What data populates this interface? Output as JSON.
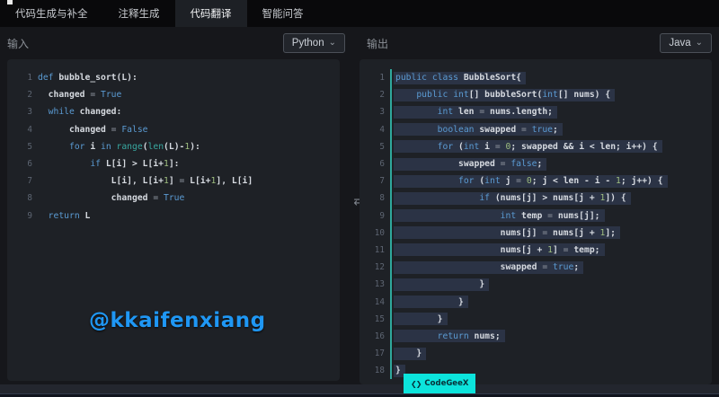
{
  "tabs": [
    {
      "id": "codegen",
      "label": "代码生成与补全",
      "active": false
    },
    {
      "id": "comment",
      "label": "注释生成",
      "active": false
    },
    {
      "id": "translate",
      "label": "代码翻译",
      "active": true
    },
    {
      "id": "qa",
      "label": "智能问答",
      "active": false
    }
  ],
  "panels": {
    "input": {
      "label": "输入",
      "lang": "Python"
    },
    "output": {
      "label": "输出",
      "lang": "Java"
    }
  },
  "icons": {
    "chevron_down": "⌄",
    "swap_arrows": "⇄",
    "badge_logo": "❮❯"
  },
  "watermark": "@kkaifenxiang",
  "badge": {
    "label": "CodeGeeX"
  },
  "colors": {
    "page_bg": "#16171b",
    "topbar_bg": "#09090b",
    "active_tab_bg": "#1d2025",
    "editor_bg": "#1e2126",
    "selection_bg": "#2b3345",
    "accent_teal": "#2fa89d",
    "keyword_blue": "#5b9bd3",
    "builtin_teal": "#38a8a0",
    "number_green": "#9fbf80",
    "watermark_blue": "#1f97f4",
    "badge_cyan": "#0ce4dc"
  },
  "editors": {
    "input": {
      "language": "Python",
      "lines": [
        [
          [
            "kw",
            "def"
          ],
          [
            "w",
            " bubble_sort(L):"
          ]
        ],
        [
          [
            "w",
            "  changed "
          ],
          [
            "op",
            "="
          ],
          [
            "w",
            " "
          ],
          [
            "kw",
            "True"
          ]
        ],
        [
          [
            "w",
            "  "
          ],
          [
            "kw",
            "while"
          ],
          [
            "w",
            " changed:"
          ]
        ],
        [
          [
            "w",
            "      changed "
          ],
          [
            "op",
            "="
          ],
          [
            "w",
            " "
          ],
          [
            "kw",
            "False"
          ]
        ],
        [
          [
            "w",
            "      "
          ],
          [
            "kw",
            "for"
          ],
          [
            "w",
            " i "
          ],
          [
            "kw",
            "in"
          ],
          [
            "w",
            " "
          ],
          [
            "fn",
            "range"
          ],
          [
            "w",
            "("
          ],
          [
            "fn",
            "len"
          ],
          [
            "w",
            "(L)-"
          ],
          [
            "num",
            "1"
          ],
          [
            "w",
            "):"
          ]
        ],
        [
          [
            "w",
            "          "
          ],
          [
            "kw",
            "if"
          ],
          [
            "w",
            " L[i] > L[i+"
          ],
          [
            "num",
            "1"
          ],
          [
            "w",
            "]:"
          ]
        ],
        [
          [
            "w",
            "              L[i], L[i+"
          ],
          [
            "num",
            "1"
          ],
          [
            "w",
            "] "
          ],
          [
            "op",
            "="
          ],
          [
            "w",
            " L[i+"
          ],
          [
            "num",
            "1"
          ],
          [
            "w",
            "], L[i]"
          ]
        ],
        [
          [
            "w",
            "              changed "
          ],
          [
            "op",
            "="
          ],
          [
            "w",
            " "
          ],
          [
            "kw",
            "True"
          ]
        ],
        [
          [
            "w",
            "  "
          ],
          [
            "kw",
            "return"
          ],
          [
            "w",
            " L"
          ]
        ]
      ]
    },
    "output": {
      "language": "Java",
      "selected": true,
      "lines": [
        [
          [
            "kw",
            "public"
          ],
          [
            "w",
            " "
          ],
          [
            "kw",
            "class"
          ],
          [
            "w",
            " BubbleSort{"
          ]
        ],
        [
          [
            "w",
            "    "
          ],
          [
            "kw",
            "public"
          ],
          [
            "w",
            " "
          ],
          [
            "kw",
            "int"
          ],
          [
            "w",
            "[] bubbleSort("
          ],
          [
            "kw",
            "int"
          ],
          [
            "w",
            "[] nums) {"
          ]
        ],
        [
          [
            "w",
            "        "
          ],
          [
            "kw",
            "int"
          ],
          [
            "w",
            " len "
          ],
          [
            "op",
            "="
          ],
          [
            "w",
            " nums.length;"
          ]
        ],
        [
          [
            "w",
            "        "
          ],
          [
            "kw",
            "boolean"
          ],
          [
            "w",
            " swapped "
          ],
          [
            "op",
            "="
          ],
          [
            "w",
            " "
          ],
          [
            "kw",
            "true"
          ],
          [
            "w",
            ";"
          ]
        ],
        [
          [
            "w",
            "        "
          ],
          [
            "kw",
            "for"
          ],
          [
            "w",
            " ("
          ],
          [
            "kw",
            "int"
          ],
          [
            "w",
            " i "
          ],
          [
            "op",
            "="
          ],
          [
            "w",
            " "
          ],
          [
            "num",
            "0"
          ],
          [
            "w",
            "; swapped && i < len; i++) {"
          ]
        ],
        [
          [
            "w",
            "            swapped "
          ],
          [
            "op",
            "="
          ],
          [
            "w",
            " "
          ],
          [
            "kw",
            "false"
          ],
          [
            "w",
            ";"
          ]
        ],
        [
          [
            "w",
            "            "
          ],
          [
            "kw",
            "for"
          ],
          [
            "w",
            " ("
          ],
          [
            "kw",
            "int"
          ],
          [
            "w",
            " j "
          ],
          [
            "op",
            "="
          ],
          [
            "w",
            " "
          ],
          [
            "num",
            "0"
          ],
          [
            "w",
            "; j < len - i - "
          ],
          [
            "num",
            "1"
          ],
          [
            "w",
            "; j++) {"
          ]
        ],
        [
          [
            "w",
            "                "
          ],
          [
            "kw",
            "if"
          ],
          [
            "w",
            " (nums[j] > nums[j + "
          ],
          [
            "num",
            "1"
          ],
          [
            "w",
            "]) {"
          ]
        ],
        [
          [
            "w",
            "                    "
          ],
          [
            "kw",
            "int"
          ],
          [
            "w",
            " temp "
          ],
          [
            "op",
            "="
          ],
          [
            "w",
            " nums[j];"
          ]
        ],
        [
          [
            "w",
            "                    nums[j] "
          ],
          [
            "op",
            "="
          ],
          [
            "w",
            " nums[j + "
          ],
          [
            "num",
            "1"
          ],
          [
            "w",
            "];"
          ]
        ],
        [
          [
            "w",
            "                    nums[j + "
          ],
          [
            "num",
            "1"
          ],
          [
            "w",
            "] "
          ],
          [
            "op",
            "="
          ],
          [
            "w",
            " temp;"
          ]
        ],
        [
          [
            "w",
            "                    swapped "
          ],
          [
            "op",
            "="
          ],
          [
            "w",
            " "
          ],
          [
            "kw",
            "true"
          ],
          [
            "w",
            ";"
          ]
        ],
        [
          [
            "w",
            "                }"
          ]
        ],
        [
          [
            "w",
            "            }"
          ]
        ],
        [
          [
            "w",
            "        }"
          ]
        ],
        [
          [
            "w",
            "        "
          ],
          [
            "kw",
            "return"
          ],
          [
            "w",
            " nums;"
          ]
        ],
        [
          [
            "w",
            "    }"
          ]
        ],
        [
          [
            "w",
            "}"
          ]
        ]
      ]
    }
  }
}
